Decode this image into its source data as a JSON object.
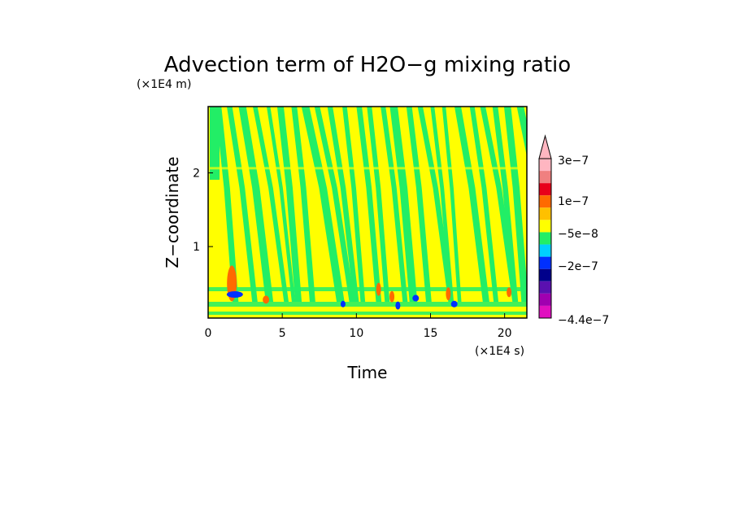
{
  "chart_data": {
    "type": "heatmap",
    "title": "Advection term of H2O−g mixing ratio",
    "xlabel": "Time",
    "ylabel": "Z−coordinate",
    "x_unit": "(×1E4 s)",
    "y_unit": "(×1E4 m)",
    "xlim": [
      0,
      21.5
    ],
    "ylim": [
      0.03,
      2.9
    ],
    "x_ticks": [
      "0",
      "5",
      "10",
      "15",
      "20"
    ],
    "y_ticks": [
      "1",
      "2"
    ],
    "colorbar": {
      "labels": [
        "3e−7",
        "1e−7",
        "−5e−8",
        "−2e−7",
        "−4.4e−7"
      ],
      "colors": [
        "#ffb6c1",
        "#f08080",
        "#e8001a",
        "#ff6a00",
        "#ffc000",
        "#ffff00",
        "#22ee66",
        "#00d0ff",
        "#0030ff",
        "#00008b",
        "#5a10b0",
        "#a000b0",
        "#e010c0"
      ],
      "extend": "max"
    },
    "dominant_classes": {
      "background": "#ffff00",
      "bands": "#22ee66",
      "positive_spots": "#ff6a00",
      "negative_spots": "#0030ff"
    }
  }
}
